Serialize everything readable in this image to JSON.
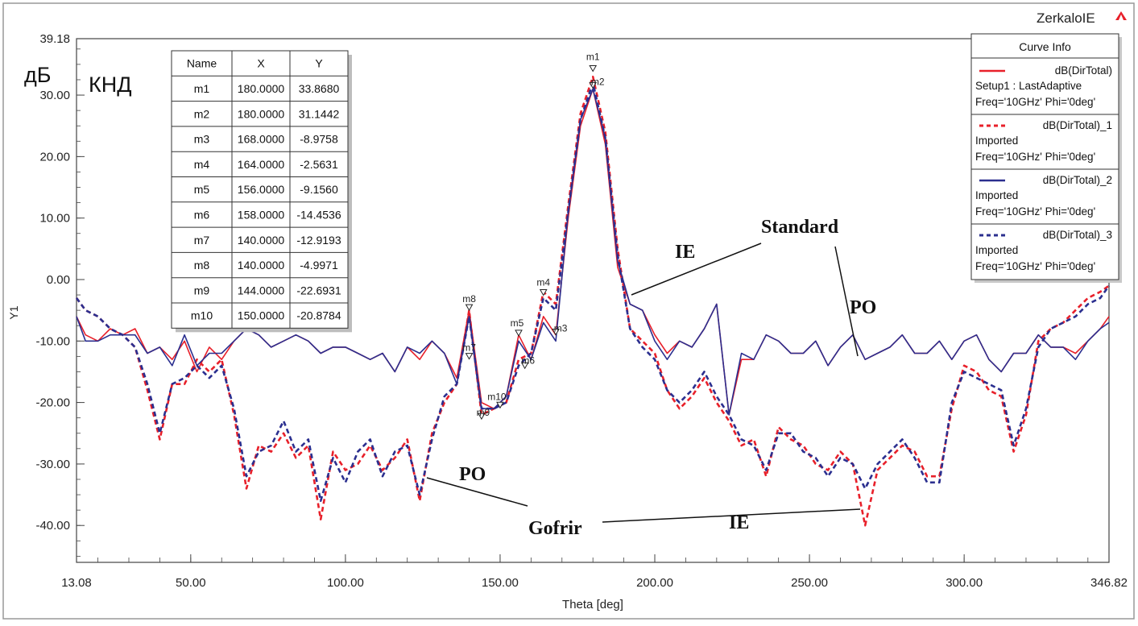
{
  "window": {
    "title": "ZerkaloIE",
    "logo_icon": "ansoft-logo-icon"
  },
  "annotations": {
    "unit": "дБ",
    "quantity": "КНД",
    "labels": [
      {
        "text": "Standard"
      },
      {
        "text": "IE"
      },
      {
        "text": "PO"
      },
      {
        "text": "PO"
      },
      {
        "text": "Gofrir"
      },
      {
        "text": "IE"
      }
    ]
  },
  "marker_table": {
    "columns": [
      "Name",
      "X",
      "Y"
    ],
    "rows": [
      [
        "m1",
        "180.0000",
        "33.8680"
      ],
      [
        "m2",
        "180.0000",
        "31.1442"
      ],
      [
        "m3",
        "168.0000",
        "-8.9758"
      ],
      [
        "m4",
        "164.0000",
        "-2.5631"
      ],
      [
        "m5",
        "156.0000",
        "-9.1560"
      ],
      [
        "m6",
        "158.0000",
        "-14.4536"
      ],
      [
        "m7",
        "140.0000",
        "-12.9193"
      ],
      [
        "m8",
        "140.0000",
        "-4.9971"
      ],
      [
        "m9",
        "144.0000",
        "-22.6931"
      ],
      [
        "m10",
        "150.0000",
        "-20.8784"
      ]
    ]
  },
  "legend": {
    "title": "Curve Info",
    "entries": [
      {
        "name": "dB(DirTotal)",
        "line2": "Setup1 : LastAdaptive",
        "line3": "Freq='10GHz' Phi='0deg'",
        "color": "#e8202a",
        "dash": "solid"
      },
      {
        "name": "dB(DirTotal)_1",
        "line2": "Imported",
        "line3": "Freq='10GHz' Phi='0deg'",
        "color": "#e8202a",
        "dash": "dashed"
      },
      {
        "name": "dB(DirTotal)_2",
        "line2": "Imported",
        "line3": "Freq='10GHz' Phi='0deg'",
        "color": "#2b2f8f",
        "dash": "solid"
      },
      {
        "name": "dB(DirTotal)_3",
        "line2": "Imported",
        "line3": "Freq='10GHz' Phi='0deg'",
        "color": "#2b2f8f",
        "dash": "dashed"
      }
    ]
  },
  "chart_data": {
    "type": "line",
    "xlabel": "Theta [deg]",
    "ylabel": "Y1",
    "xlim": [
      13.08,
      346.82
    ],
    "ylim": [
      -46,
      39.18
    ],
    "x_tick_labels": [
      "13.08",
      "50.00",
      "100.00",
      "150.00",
      "200.00",
      "250.00",
      "300.00",
      "346.82"
    ],
    "x_ticks": [
      13.08,
      50,
      100,
      150,
      200,
      250,
      300,
      346.82
    ],
    "y_tick_labels": [
      "39.18",
      "30.00",
      "20.00",
      "10.00",
      "0.00",
      "-10.00",
      "-20.00",
      "-30.00",
      "-40.00"
    ],
    "y_ticks": [
      39.18,
      30,
      20,
      10,
      0,
      -10,
      -20,
      -30,
      -40
    ],
    "grid": false,
    "legend_position": "top-right",
    "markers": [
      {
        "name": "m1",
        "x": 180,
        "y": 33.868
      },
      {
        "name": "m2",
        "x": 180,
        "y": 31.1442
      },
      {
        "name": "m3",
        "x": 168,
        "y": -8.9758
      },
      {
        "name": "m4",
        "x": 164,
        "y": -2.5631
      },
      {
        "name": "m5",
        "x": 156,
        "y": -9.156
      },
      {
        "name": "m6",
        "x": 158,
        "y": -14.4536
      },
      {
        "name": "m7",
        "x": 140,
        "y": -12.9193
      },
      {
        "name": "m8",
        "x": 140,
        "y": -4.9971
      },
      {
        "name": "m9",
        "x": 144,
        "y": -22.6931
      },
      {
        "name": "m10",
        "x": 150,
        "y": -20.8784
      }
    ],
    "series": [
      {
        "name": "dB(DirTotal)",
        "color": "#e8202a",
        "dash": "solid",
        "x": [
          13.08,
          16,
          20,
          24,
          28,
          32,
          36,
          40,
          44,
          48,
          52,
          56,
          60,
          64,
          68,
          72,
          76,
          80,
          84,
          88,
          92,
          96,
          100,
          104,
          108,
          112,
          116,
          120,
          124,
          128,
          132,
          136,
          140,
          144,
          148,
          152,
          156,
          160,
          164,
          168,
          172,
          176,
          180,
          184,
          188,
          192,
          196,
          200,
          204,
          208,
          212,
          216,
          220,
          224,
          228,
          232,
          236,
          240,
          244,
          248,
          252,
          256,
          260,
          264,
          268,
          272,
          276,
          280,
          284,
          288,
          292,
          296,
          300,
          304,
          308,
          312,
          316,
          320,
          324,
          328,
          332,
          336,
          340,
          344,
          346.82
        ],
        "y": [
          -6,
          -9,
          -10,
          -8,
          -9,
          -8,
          -12,
          -11,
          -13,
          -10,
          -15,
          -11,
          -13,
          -10,
          -8,
          -9,
          -11,
          -10,
          -9,
          -10,
          -12,
          -11,
          -11,
          -12,
          -13,
          -12,
          -15,
          -11,
          -13,
          -10,
          -12,
          -16,
          -5,
          -20,
          -21,
          -19,
          -9,
          -13,
          -6,
          -9,
          10,
          25,
          31,
          22,
          2,
          -4,
          -5,
          -9,
          -12,
          -10,
          -11,
          -8,
          -4,
          -22,
          -13,
          -13,
          -9,
          -10,
          -12,
          -12,
          -10,
          -14,
          -11,
          -9,
          -13,
          -12,
          -11,
          -9,
          -12,
          -12,
          -10,
          -13,
          -10,
          -9,
          -13,
          -15,
          -12,
          -12,
          -9,
          -11,
          -11,
          -12,
          -10,
          -8,
          -6
        ]
      },
      {
        "name": "dB(DirTotal)_1",
        "color": "#e8202a",
        "dash": "dashed",
        "x": [
          13.08,
          16,
          20,
          24,
          28,
          32,
          36,
          40,
          44,
          48,
          52,
          56,
          60,
          64,
          68,
          72,
          76,
          80,
          84,
          88,
          92,
          96,
          100,
          104,
          108,
          112,
          116,
          120,
          124,
          128,
          132,
          136,
          140,
          144,
          148,
          152,
          156,
          160,
          164,
          168,
          172,
          176,
          180,
          184,
          188,
          192,
          196,
          200,
          204,
          208,
          212,
          216,
          220,
          224,
          228,
          232,
          236,
          240,
          244,
          248,
          252,
          256,
          260,
          264,
          268,
          272,
          276,
          280,
          284,
          288,
          292,
          296,
          300,
          304,
          308,
          312,
          316,
          320,
          324,
          328,
          332,
          336,
          340,
          344,
          346.82
        ],
        "y": [
          -3,
          -5,
          -6,
          -8,
          -9,
          -11,
          -18,
          -26,
          -17,
          -17,
          -13,
          -15,
          -13,
          -22,
          -34,
          -27,
          -28,
          -25,
          -29,
          -27,
          -39,
          -28,
          -31,
          -30,
          -27,
          -31,
          -29,
          -26,
          -36,
          -25,
          -20,
          -17,
          -5,
          -22,
          -21,
          -20,
          -13,
          -12,
          -2,
          -4,
          12,
          27,
          33,
          24,
          5,
          -8,
          -10,
          -12,
          -18,
          -21,
          -19,
          -16,
          -20,
          -23,
          -27,
          -26,
          -32,
          -24,
          -26,
          -27,
          -30,
          -31,
          -28,
          -30,
          -40,
          -31,
          -29,
          -27,
          -28,
          -32,
          -32,
          -21,
          -14,
          -15,
          -18,
          -19,
          -28,
          -22,
          -10,
          -8,
          -7,
          -5,
          -3,
          -2,
          -1
        ]
      },
      {
        "name": "dB(DirTotal)_2",
        "color": "#2b2f8f",
        "dash": "solid",
        "x": [
          13.08,
          16,
          20,
          24,
          28,
          32,
          36,
          40,
          44,
          48,
          52,
          56,
          60,
          64,
          68,
          72,
          76,
          80,
          84,
          88,
          92,
          96,
          100,
          104,
          108,
          112,
          116,
          120,
          124,
          128,
          132,
          136,
          140,
          144,
          148,
          152,
          156,
          160,
          164,
          168,
          172,
          176,
          180,
          184,
          188,
          192,
          196,
          200,
          204,
          208,
          212,
          216,
          220,
          224,
          228,
          232,
          236,
          240,
          244,
          248,
          252,
          256,
          260,
          264,
          268,
          272,
          276,
          280,
          284,
          288,
          292,
          296,
          300,
          304,
          308,
          312,
          316,
          320,
          324,
          328,
          332,
          336,
          340,
          344,
          346.82
        ],
        "y": [
          -6,
          -10,
          -10,
          -9,
          -9,
          -9,
          -12,
          -11,
          -14,
          -9,
          -14,
          -12,
          -12,
          -10,
          -8,
          -9,
          -11,
          -10,
          -9,
          -10,
          -12,
          -11,
          -11,
          -12,
          -13,
          -12,
          -15,
          -11,
          -12,
          -10,
          -12,
          -17,
          -6,
          -21,
          -21,
          -19,
          -10,
          -13,
          -7,
          -10,
          11,
          26,
          31,
          23,
          3,
          -4,
          -5,
          -10,
          -13,
          -10,
          -11,
          -8,
          -4,
          -22,
          -12,
          -13,
          -9,
          -10,
          -12,
          -12,
          -10,
          -14,
          -11,
          -9,
          -13,
          -12,
          -11,
          -9,
          -12,
          -12,
          -10,
          -13,
          -10,
          -9,
          -13,
          -15,
          -12,
          -12,
          -9,
          -11,
          -11,
          -13,
          -10,
          -8,
          -7
        ]
      },
      {
        "name": "dB(DirTotal)_3",
        "color": "#2b2f8f",
        "dash": "dashed",
        "x": [
          13.08,
          16,
          20,
          24,
          28,
          32,
          36,
          40,
          44,
          48,
          52,
          56,
          60,
          64,
          68,
          72,
          76,
          80,
          84,
          88,
          92,
          96,
          100,
          104,
          108,
          112,
          116,
          120,
          124,
          128,
          132,
          136,
          140,
          144,
          148,
          152,
          156,
          160,
          164,
          168,
          172,
          176,
          180,
          184,
          188,
          192,
          196,
          200,
          204,
          208,
          212,
          216,
          220,
          224,
          228,
          232,
          236,
          240,
          244,
          248,
          252,
          256,
          260,
          264,
          268,
          272,
          276,
          280,
          284,
          288,
          292,
          296,
          300,
          304,
          308,
          312,
          316,
          320,
          324,
          328,
          332,
          336,
          340,
          344,
          346.82
        ],
        "y": [
          -3,
          -5,
          -6,
          -8,
          -9,
          -11,
          -17,
          -25,
          -17,
          -16,
          -14,
          -16,
          -14,
          -21,
          -32,
          -28,
          -27,
          -23,
          -28,
          -26,
          -36,
          -29,
          -33,
          -28,
          -26,
          -32,
          -28,
          -27,
          -35,
          -26,
          -19,
          -17,
          -6,
          -21,
          -21,
          -20,
          -14,
          -12,
          -3,
          -5,
          11,
          26,
          32,
          23,
          4,
          -8,
          -11,
          -13,
          -18,
          -20,
          -18,
          -15,
          -19,
          -22,
          -26,
          -27,
          -31,
          -25,
          -25,
          -28,
          -29,
          -32,
          -29,
          -30,
          -34,
          -30,
          -28,
          -26,
          -29,
          -33,
          -33,
          -20,
          -15,
          -16,
          -17,
          -18,
          -27,
          -21,
          -11,
          -8,
          -7,
          -6,
          -4,
          -3,
          -1
        ]
      }
    ]
  }
}
